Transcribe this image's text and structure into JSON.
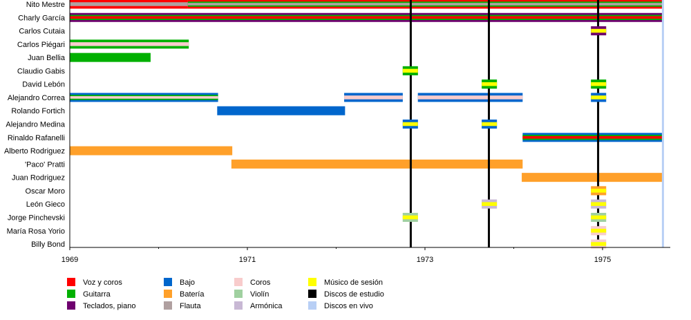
{
  "chart_data": {
    "type": "timeline",
    "title": "",
    "xlim": [
      1969,
      1975.68
    ],
    "x_ticks_major": [
      1969,
      1971,
      1973,
      1975
    ],
    "x_ticks_minor": [
      1970,
      1972,
      1974
    ],
    "colors": {
      "voz": "#ff0000",
      "guitarra": "#00b000",
      "teclados": "#6e006e",
      "bajo": "#0066cc",
      "bateria": "#ffa02a",
      "flauta": "#b0a0a0",
      "coros": "#f8cccc",
      "violin": "#a0d0a0",
      "armonica": "#c8b8d4",
      "sesion": "#ffff00",
      "estudio": "#000000",
      "vivo": "#b8cff5"
    },
    "members": [
      {
        "name": "Nito Mestre",
        "spans": [
          [
            1969,
            1970.33,
            [
              "voz",
              "flauta"
            ]
          ],
          [
            1970.33,
            1975.68,
            [
              "voz",
              "guitarra",
              "flauta"
            ]
          ]
        ]
      },
      {
        "name": "Charly García",
        "spans": [
          [
            1969,
            1975.68,
            [
              "teclados",
              "guitarra",
              "voz"
            ]
          ]
        ]
      },
      {
        "name": "Carlos Cutaia",
        "spans": [
          [
            1974.87,
            1975.04,
            [
              "teclados",
              "sesion"
            ]
          ]
        ]
      },
      {
        "name": "Carlos Piégari",
        "spans": [
          [
            1969,
            1970.34,
            [
              "guitarra",
              "coros"
            ]
          ]
        ]
      },
      {
        "name": "Juan Bellia",
        "spans": [
          [
            1969,
            1969.91,
            [
              "guitarra"
            ]
          ]
        ]
      },
      {
        "name": "Claudio Gabis",
        "spans": [
          [
            1972.75,
            1972.92,
            [
              "guitarra",
              "sesion"
            ]
          ]
        ]
      },
      {
        "name": "David Lebón",
        "spans": [
          [
            1973.64,
            1973.81,
            [
              "guitarra",
              "sesion"
            ]
          ],
          [
            1974.87,
            1975.04,
            [
              "guitarra",
              "sesion"
            ]
          ]
        ]
      },
      {
        "name": "Alejandro Correa",
        "spans": [
          [
            1969,
            1970.67,
            [
              "bajo",
              "guitarra",
              "coros"
            ]
          ],
          [
            1972.09,
            1972.75,
            [
              "bajo",
              "coros"
            ]
          ],
          [
            1972.92,
            1974.1,
            [
              "bajo",
              "coros"
            ]
          ],
          [
            1974.87,
            1975.04,
            [
              "bajo",
              "sesion"
            ]
          ]
        ]
      },
      {
        "name": "Rolando Fortich",
        "spans": [
          [
            1970.66,
            1972.1,
            [
              "bajo"
            ]
          ]
        ]
      },
      {
        "name": "Alejandro Medina",
        "spans": [
          [
            1972.75,
            1972.92,
            [
              "bajo",
              "sesion"
            ]
          ],
          [
            1973.64,
            1973.81,
            [
              "bajo",
              "sesion"
            ]
          ]
        ]
      },
      {
        "name": "Rinaldo Rafanelli",
        "spans": [
          [
            1974.1,
            1975.68,
            [
              "bajo",
              "guitarra",
              "voz"
            ]
          ]
        ]
      },
      {
        "name": "Alberto Rodriguez",
        "spans": [
          [
            1969,
            1970.83,
            [
              "bateria"
            ]
          ]
        ]
      },
      {
        "name": "'Paco' Pratti",
        "spans": [
          [
            1970.82,
            1974.1,
            [
              "bateria"
            ]
          ]
        ]
      },
      {
        "name": "Juan Rodriguez",
        "spans": [
          [
            1974.09,
            1975.68,
            [
              "bateria"
            ]
          ]
        ]
      },
      {
        "name": "Oscar Moro",
        "spans": [
          [
            1974.87,
            1975.04,
            [
              "bateria",
              "sesion"
            ]
          ]
        ]
      },
      {
        "name": "León Gieco",
        "spans": [
          [
            1973.64,
            1973.81,
            [
              "armonica",
              "sesion"
            ]
          ],
          [
            1974.87,
            1975.04,
            [
              "armonica",
              "sesion"
            ]
          ]
        ]
      },
      {
        "name": "Jorge Pinchevski",
        "spans": [
          [
            1972.75,
            1972.92,
            [
              "violin",
              "sesion"
            ]
          ],
          [
            1974.87,
            1975.04,
            [
              "violin",
              "sesion"
            ]
          ]
        ]
      },
      {
        "name": "María Rosa Yorio",
        "spans": [
          [
            1974.87,
            1975.04,
            [
              "coros",
              "sesion"
            ]
          ]
        ]
      },
      {
        "name": "Billy Bond",
        "spans": [
          [
            1974.87,
            1975.04,
            [
              "coros",
              "sesion"
            ]
          ]
        ]
      }
    ],
    "studio_albums": [
      1972.84,
      1973.72,
      1974.95
    ],
    "live_albums": [
      1975.68
    ],
    "legend": [
      {
        "key": "voz",
        "label": "Voz y coros"
      },
      {
        "key": "guitarra",
        "label": "Guitarra"
      },
      {
        "key": "teclados",
        "label": "Teclados, piano"
      },
      {
        "key": "bajo",
        "label": "Bajo"
      },
      {
        "key": "bateria",
        "label": "Batería"
      },
      {
        "key": "flauta",
        "label": "Flauta"
      },
      {
        "key": "coros",
        "label": "Coros"
      },
      {
        "key": "violin",
        "label": "Violín"
      },
      {
        "key": "armonica",
        "label": "Armónica"
      },
      {
        "key": "sesion",
        "label": "Músico de sesión"
      },
      {
        "key": "estudio",
        "label": "Discos de estudio"
      },
      {
        "key": "vivo",
        "label": "Discos en vivo"
      }
    ],
    "legend_position": "bottom"
  }
}
